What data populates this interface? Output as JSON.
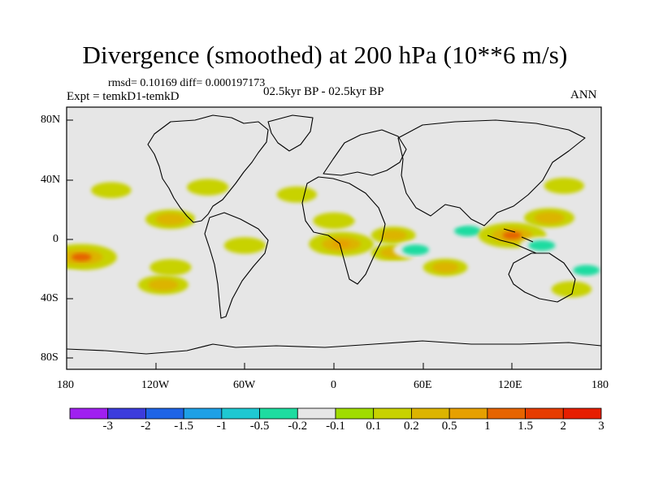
{
  "title": "Divergence (smoothed) at 200 hPa (10**6 m/s)",
  "stats": "rmsd= 0.10169 diff= 0.000197173",
  "experiment": "Expt = temkD1-temkD",
  "period": "02.5kyr BP - 02.5kyr BP",
  "season": "ANN",
  "y_ticks": [
    "80N",
    "40N",
    "0",
    "40S",
    "80S"
  ],
  "x_ticks": [
    "180",
    "120W",
    "60W",
    "0",
    "60E",
    "120E",
    "180"
  ],
  "colorbar": {
    "colors": [
      "#a020f0",
      "#3c3cdc",
      "#1e64e6",
      "#1ea0e6",
      "#1ec8d2",
      "#1edca0",
      "#e6e6e6",
      "#a0dc00",
      "#c8d200",
      "#dcb400",
      "#e6a000",
      "#e66400",
      "#e63c00",
      "#e61e00"
    ],
    "labels": [
      "-3",
      "-2",
      "-1.5",
      "-1",
      "-0.5",
      "-0.2",
      "-0.1",
      "0.1",
      "0.2",
      "0.5",
      "1",
      "1.5",
      "2",
      "3"
    ]
  },
  "map": {
    "type": "filled-contour",
    "field": "200 hPa divergence difference",
    "lon_range": [
      -180,
      180
    ],
    "lat_range": [
      -90,
      90
    ],
    "background_color": "#e6e6e6",
    "anomalies": [
      {
        "lon": -150,
        "lat": 33,
        "value": 0.15
      },
      {
        "lon": -170,
        "lat": -13,
        "value": 1.2
      },
      {
        "lon": -178,
        "lat": -28,
        "value": -0.15
      },
      {
        "lon": -135,
        "lat": 8,
        "value": -0.15
      },
      {
        "lon": -110,
        "lat": 13,
        "value": 0.5
      },
      {
        "lon": -110,
        "lat": -20,
        "value": 0.2
      },
      {
        "lon": -115,
        "lat": -32,
        "value": 0.5
      },
      {
        "lon": -85,
        "lat": 35,
        "value": 0.2
      },
      {
        "lon": -80,
        "lat": 12,
        "value": -0.15
      },
      {
        "lon": -63,
        "lat": 18,
        "value": -0.15
      },
      {
        "lon": -70,
        "lat": -10,
        "value": -0.15
      },
      {
        "lon": -60,
        "lat": -5,
        "value": 0.2
      },
      {
        "lon": -45,
        "lat": 37,
        "value": -0.15
      },
      {
        "lon": -30,
        "lat": 12,
        "value": -0.2
      },
      {
        "lon": -25,
        "lat": 30,
        "value": 0.15
      },
      {
        "lon": 5,
        "lat": -4,
        "value": 1.0
      },
      {
        "lon": -5,
        "lat": -18,
        "value": -0.15
      },
      {
        "lon": 0,
        "lat": 12,
        "value": 0.2
      },
      {
        "lon": 25,
        "lat": 18,
        "value": -0.15
      },
      {
        "lon": 40,
        "lat": 2,
        "value": 0.3
      },
      {
        "lon": 40,
        "lat": -10,
        "value": 0.3
      },
      {
        "lon": 40,
        "lat": -22,
        "value": -0.2
      },
      {
        "lon": 55,
        "lat": -8,
        "value": -0.3
      },
      {
        "lon": 75,
        "lat": -20,
        "value": 0.3
      },
      {
        "lon": 100,
        "lat": 37,
        "value": -0.2
      },
      {
        "lon": 90,
        "lat": 5,
        "value": -0.3
      },
      {
        "lon": 80,
        "lat": 15,
        "value": -0.2
      },
      {
        "lon": 120,
        "lat": 2,
        "value": 1.1
      },
      {
        "lon": 145,
        "lat": 14,
        "value": 0.5
      },
      {
        "lon": 140,
        "lat": -5,
        "value": -0.3
      },
      {
        "lon": 170,
        "lat": -22,
        "value": -0.3
      },
      {
        "lon": 160,
        "lat": -35,
        "value": 0.15
      },
      {
        "lon": 155,
        "lat": 36,
        "value": 0.15
      }
    ]
  }
}
